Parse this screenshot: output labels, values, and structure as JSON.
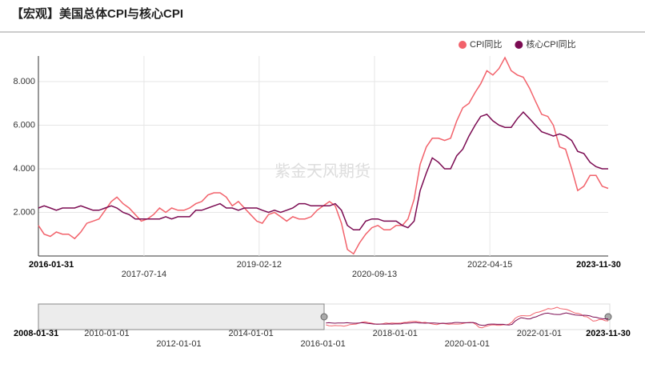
{
  "chart_data": {
    "type": "line",
    "title": "【宏观】美国总体CPI与核心CPI",
    "watermark": "紫金天风期货",
    "x": [
      "2016-01-31",
      "2016-02-29",
      "2016-03-31",
      "2016-04-30",
      "2016-05-31",
      "2016-06-30",
      "2016-07-31",
      "2016-08-31",
      "2016-09-30",
      "2016-10-31",
      "2016-11-30",
      "2016-12-31",
      "2017-01-31",
      "2017-02-28",
      "2017-03-31",
      "2017-04-30",
      "2017-05-31",
      "2017-06-30",
      "2017-07-31",
      "2017-08-31",
      "2017-09-30",
      "2017-10-31",
      "2017-11-30",
      "2017-12-31",
      "2018-01-31",
      "2018-02-28",
      "2018-03-31",
      "2018-04-30",
      "2018-05-31",
      "2018-06-30",
      "2018-07-31",
      "2018-08-31",
      "2018-09-30",
      "2018-10-31",
      "2018-11-30",
      "2018-12-31",
      "2019-01-31",
      "2019-02-28",
      "2019-03-31",
      "2019-04-30",
      "2019-05-31",
      "2019-06-30",
      "2019-07-31",
      "2019-08-31",
      "2019-09-30",
      "2019-10-31",
      "2019-11-30",
      "2019-12-31",
      "2020-01-31",
      "2020-02-29",
      "2020-03-31",
      "2020-04-30",
      "2020-05-31",
      "2020-06-30",
      "2020-07-31",
      "2020-08-31",
      "2020-09-30",
      "2020-10-31",
      "2020-11-30",
      "2020-12-31",
      "2021-01-31",
      "2021-02-28",
      "2021-03-31",
      "2021-04-30",
      "2021-05-31",
      "2021-06-30",
      "2021-07-31",
      "2021-08-31",
      "2021-09-30",
      "2021-10-31",
      "2021-11-30",
      "2021-12-31",
      "2022-01-31",
      "2022-02-28",
      "2022-03-31",
      "2022-04-30",
      "2022-05-31",
      "2022-06-30",
      "2022-07-31",
      "2022-08-31",
      "2022-09-30",
      "2022-10-31",
      "2022-11-30",
      "2022-12-31",
      "2023-01-31",
      "2023-02-28",
      "2023-03-31",
      "2023-04-30",
      "2023-05-31",
      "2023-06-30",
      "2023-07-31",
      "2023-08-31",
      "2023-09-30",
      "2023-10-31",
      "2023-11-30"
    ],
    "series": [
      {
        "name": "CPI同比",
        "color": "#f2626b",
        "values": [
          1.4,
          1.0,
          0.9,
          1.1,
          1.0,
          1.0,
          0.8,
          1.1,
          1.5,
          1.6,
          1.7,
          2.1,
          2.5,
          2.7,
          2.4,
          2.2,
          1.9,
          1.6,
          1.7,
          1.9,
          2.2,
          2.0,
          2.2,
          2.1,
          2.1,
          2.2,
          2.4,
          2.5,
          2.8,
          2.9,
          2.9,
          2.7,
          2.3,
          2.5,
          2.2,
          1.9,
          1.6,
          1.5,
          1.9,
          2.0,
          1.8,
          1.6,
          1.8,
          1.7,
          1.7,
          1.8,
          2.1,
          2.3,
          2.5,
          2.3,
          1.5,
          0.3,
          0.1,
          0.6,
          1.0,
          1.3,
          1.4,
          1.2,
          1.2,
          1.4,
          1.4,
          1.7,
          2.6,
          4.2,
          5.0,
          5.4,
          5.4,
          5.3,
          5.4,
          6.2,
          6.8,
          7.0,
          7.5,
          7.9,
          8.5,
          8.3,
          8.6,
          9.1,
          8.5,
          8.3,
          8.2,
          7.7,
          7.1,
          6.5,
          6.4,
          6.0,
          5.0,
          4.9,
          4.0,
          3.0,
          3.2,
          3.7,
          3.7,
          3.2,
          3.1
        ]
      },
      {
        "name": "核心CPI同比",
        "color": "#7b0b52",
        "values": [
          2.2,
          2.3,
          2.2,
          2.1,
          2.2,
          2.2,
          2.2,
          2.3,
          2.2,
          2.1,
          2.1,
          2.2,
          2.3,
          2.2,
          2.0,
          1.9,
          1.7,
          1.7,
          1.7,
          1.7,
          1.7,
          1.8,
          1.7,
          1.8,
          1.8,
          1.8,
          2.1,
          2.1,
          2.2,
          2.3,
          2.4,
          2.2,
          2.2,
          2.1,
          2.2,
          2.2,
          2.2,
          2.1,
          2.0,
          2.1,
          2.0,
          2.1,
          2.2,
          2.4,
          2.4,
          2.3,
          2.3,
          2.3,
          2.3,
          2.4,
          2.1,
          1.4,
          1.2,
          1.2,
          1.6,
          1.7,
          1.7,
          1.6,
          1.6,
          1.6,
          1.4,
          1.3,
          1.6,
          3.0,
          3.8,
          4.5,
          4.3,
          4.0,
          4.0,
          4.6,
          4.9,
          5.5,
          6.0,
          6.4,
          6.5,
          6.2,
          6.0,
          5.9,
          5.9,
          6.3,
          6.6,
          6.3,
          6.0,
          5.7,
          5.6,
          5.5,
          5.6,
          5.5,
          5.3,
          4.8,
          4.7,
          4.3,
          4.1,
          4.0,
          4.0
        ]
      }
    ],
    "ylim": [
      0,
      9.1
    ],
    "yticks": [
      {
        "value": 2,
        "label": "2.000"
      },
      {
        "value": 4,
        "label": "4.000"
      },
      {
        "value": 6,
        "label": "6.000"
      },
      {
        "value": 8,
        "label": "8.000"
      }
    ],
    "xticks": [
      "2016-01-31",
      "2017-07-14",
      "2019-02-12",
      "2020-09-13",
      "2022-04-15",
      "2023-11-30"
    ],
    "grid": true,
    "legend": "top-right",
    "zoom_labels": [
      "2008-01-31",
      "2010-01-01",
      "2012-01-01",
      "2014-01-01",
      "2016-01-01",
      "2018-01-01",
      "2020-01-01",
      "2022-01-01",
      "2023-11-30"
    ]
  }
}
